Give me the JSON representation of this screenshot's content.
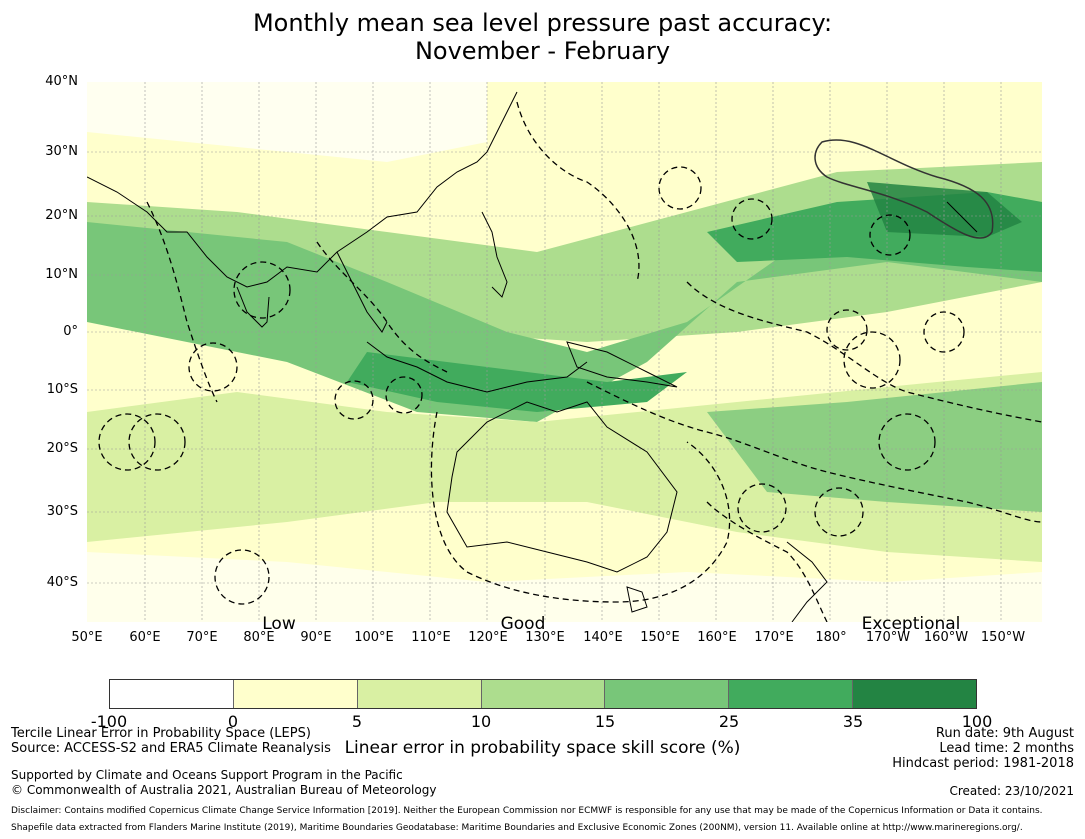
{
  "title": {
    "line1": "Monthly mean sea level pressure past accuracy:",
    "line2": "November - February"
  },
  "map": {
    "lat_labels": [
      "40°N",
      "30°N",
      "20°N",
      "10°N",
      "0°",
      "10°S",
      "20°S",
      "30°S",
      "40°S"
    ],
    "lon_labels": [
      "50°E",
      "60°E",
      "70°E",
      "80°E",
      "90°E",
      "100°E",
      "110°E",
      "120°E",
      "130°E",
      "140°E",
      "150°E",
      "160°E",
      "170°E",
      "180°",
      "170°W",
      "160°W",
      "150°W"
    ],
    "region_labels": [
      "Low",
      "Good",
      "Exceptional"
    ]
  },
  "colorbar": {
    "ticks": [
      "-100",
      "0",
      "5",
      "10",
      "15",
      "25",
      "35",
      "100"
    ],
    "colors": [
      "#ffffff",
      "#ffffcc",
      "#d9f0a3",
      "#addd8e",
      "#78c679",
      "#41ab5d",
      "#238443"
    ],
    "label": "Linear error in probability space skill score (%)"
  },
  "info_left": {
    "line1": "Tercile Linear Error in Probability Space (LEPS)",
    "line2": "Source: ACCESS-S2 and ERA5 Climate Reanalysis",
    "line3": "Supported by Climate and Oceans Support Program in the Pacific",
    "line4": "© Commonwealth of Australia 2021, Australian Bureau of Meteorology"
  },
  "info_right": {
    "run_date": "Run date: 9th August",
    "lead_time": "Lead time: 2 months",
    "hindcast": "Hindcast period: 1981-2018",
    "created": "Created: 23/10/2021"
  },
  "disclaimer": {
    "line1": "Disclaimer: Contains modified Copernicus Climate Change Service Information [2019]. Neither the European Commission nor ECMWF is responsible for any use that may be made of the Copernicus Information or Data it contains.",
    "line2": "Shapefile data extracted from Flanders Marine Institute (2019), Maritime Boundaries Geodatabase: Maritime Boundaries and Exclusive Economic Zones (200NM), version 11. Available online at http://www.marineregions.org/."
  }
}
